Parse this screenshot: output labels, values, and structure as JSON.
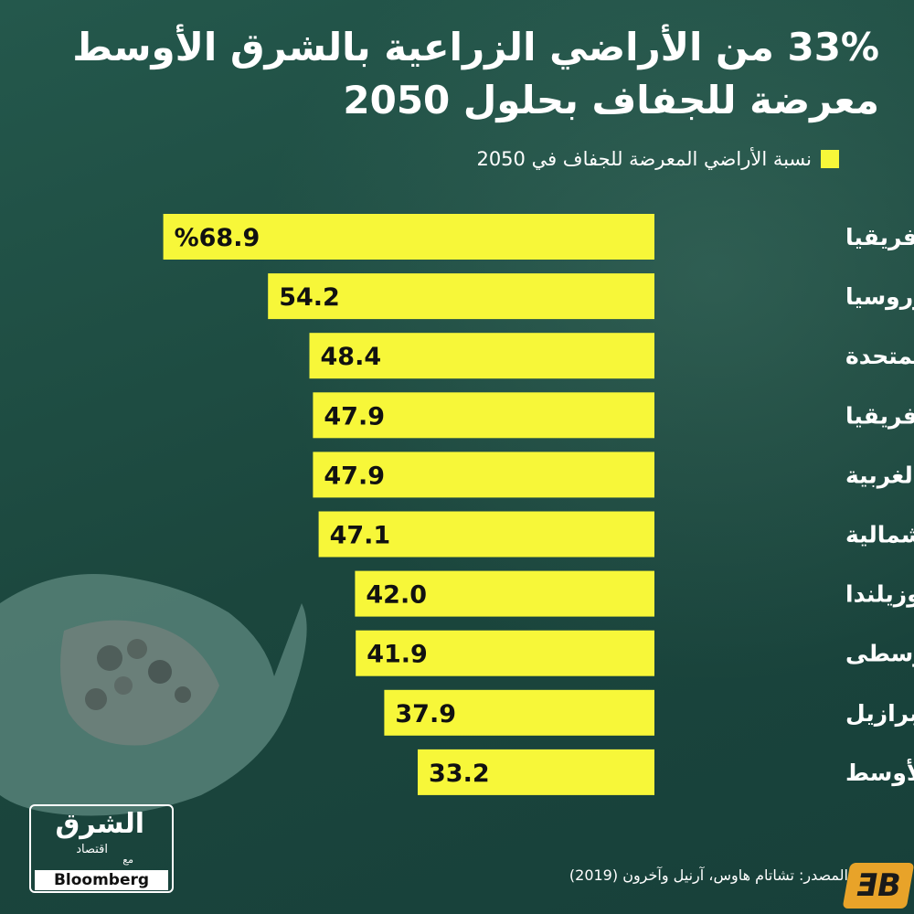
{
  "title_line1": "33% من الأراضي الزراعية بالشرق الأوسط",
  "title_line2": "معرضة للجفاف بحلول 2050",
  "legend_label": "نسبة الأراضي المعرضة للجفاف في 2050",
  "source": "المصدر: تشاتام هاوس، آرنيل وآخرون (2019)",
  "logo": {
    "name": "الشرق",
    "sub": "اقتصاد",
    "with": "مع",
    "partner": "Bloomberg"
  },
  "brand_icon": "ƎB",
  "colors": {
    "bar": "#f7f739",
    "background": "#1d4a40",
    "text": "#ffffff"
  },
  "chart_data": {
    "type": "bar",
    "orientation": "horizontal",
    "series": [
      {
        "name": "نسبة الأراضي المعرضة للجفاف في 2050",
        "values": [
          68.9,
          54.2,
          48.4,
          47.9,
          47.9,
          47.1,
          42.0,
          41.9,
          37.9,
          33.2
        ]
      }
    ],
    "categories": [
      "غرب أفريقيا",
      "أوروبا الشرقية وروسيا",
      "الولايات المتحدة",
      "جنوب أفريقيا",
      "أوروبا الغربية",
      "أمريكا الشمالية",
      "أستراليا ونيوزيلندا",
      "أمريكا الوسطى",
      "البرازيل",
      "الشرق الأوسط"
    ],
    "values": [
      68.9,
      54.2,
      48.4,
      47.9,
      47.9,
      47.1,
      42.0,
      41.9,
      37.9,
      33.2
    ],
    "data_labels": [
      "%68.9",
      "54.2",
      "48.4",
      "47.9",
      "47.9",
      "47.1",
      "42.0",
      "41.9",
      "37.9",
      "33.2"
    ],
    "unit": "%",
    "xlim": [
      0,
      100
    ],
    "grid": false,
    "legend_position": "top-right"
  }
}
